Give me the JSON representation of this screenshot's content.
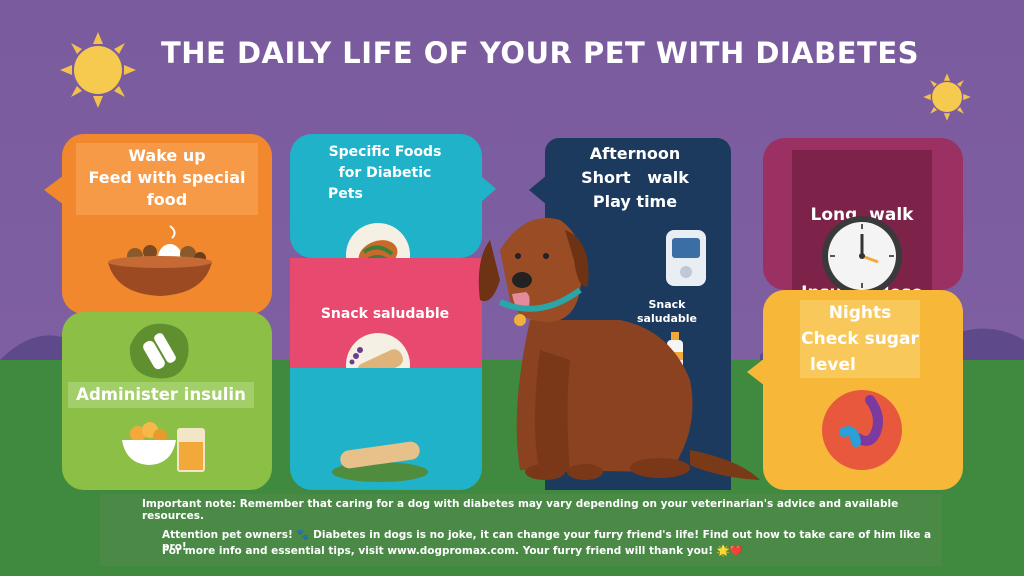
{
  "title": "THE DAILY LIFE OF YOUR PET WITH DIABETES",
  "cards": {
    "morning": {
      "line1": "Wake up",
      "line2": "Feed with special",
      "line3": "food"
    },
    "insulin": {
      "label": "Administer insulin"
    },
    "foods": {
      "line1": "Specific Foods",
      "line2": "for Diabetic",
      "line3": "Pets"
    },
    "snack": {
      "label": "Snack saludable"
    },
    "afternoon": {
      "line1": "Afternoon",
      "line2": "Short   walk",
      "line3": "Play time",
      "snack_line1": "Snack",
      "snack_line2": "saludable"
    },
    "evening": {
      "line1": "Long  walk",
      "line2": "Insulin  dose"
    },
    "night": {
      "line1": "Nights",
      "line2": "Check sugar",
      "line3": "level"
    }
  },
  "notes": {
    "important": "Important note: Remember that caring for a dog with diabetes may vary depending on your veterinarian's advice and available resources.",
    "attention": "Attention pet owners! 🐾 Diabetes in dogs is no joke, it can change your furry friend's life! Find out how to take care of him like a pro!",
    "more_info": "For more info and essential tips, visit www.dogpromax.com. Your furry friend will thank you! 🌟❤️"
  },
  "icons": [
    "sun-icon",
    "bowl-icon",
    "syringe-icon",
    "food-bowl-icon",
    "glass-icon",
    "treat-icon",
    "biscuit-icon",
    "glucometer-icon",
    "bottle-icon",
    "clock-icon",
    "blood-drop-icon",
    "dog-illustration"
  ],
  "colors": {
    "orange": "#f2882e",
    "green": "#8cbf45",
    "teal": "#1fb2c9",
    "pink": "#e84a6f",
    "navy": "#1c3a5e",
    "plum": "#9b3163",
    "yellow": "#f7b83a",
    "background": "#7a5b9e",
    "ground": "#3f8a3e"
  }
}
